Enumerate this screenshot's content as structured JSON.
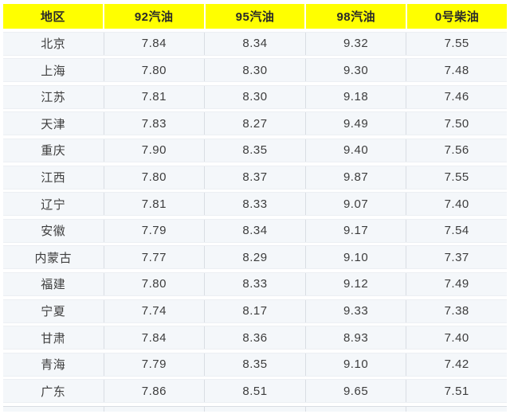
{
  "table": {
    "title": "regional-fuel-prices",
    "columns": [
      {
        "label": "地区"
      },
      {
        "label": "92汽油"
      },
      {
        "label": "95汽油"
      },
      {
        "label": "98汽油"
      },
      {
        "label": "0号柴油"
      }
    ],
    "rows": [
      {
        "values": [
          "北京",
          "7.84",
          "8.34",
          "9.32",
          "7.55"
        ]
      },
      {
        "values": [
          "上海",
          "7.80",
          "8.30",
          "9.30",
          "7.48"
        ]
      },
      {
        "values": [
          "江苏",
          "7.81",
          "8.30",
          "9.18",
          "7.46"
        ]
      },
      {
        "values": [
          "天津",
          "7.83",
          "8.27",
          "9.49",
          "7.50"
        ]
      },
      {
        "values": [
          "重庆",
          "7.90",
          "8.35",
          "9.40",
          "7.56"
        ]
      },
      {
        "values": [
          "江西",
          "7.80",
          "8.37",
          "9.87",
          "7.55"
        ]
      },
      {
        "values": [
          "辽宁",
          "7.81",
          "8.33",
          "9.07",
          "7.40"
        ]
      },
      {
        "values": [
          "安徽",
          "7.79",
          "8.34",
          "9.17",
          "7.54"
        ]
      },
      {
        "values": [
          "内蒙古",
          "7.77",
          "8.29",
          "9.10",
          "7.37"
        ]
      },
      {
        "values": [
          "福建",
          "7.80",
          "8.33",
          "9.12",
          "7.49"
        ]
      },
      {
        "values": [
          "宁夏",
          "7.74",
          "8.17",
          "9.33",
          "7.38"
        ]
      },
      {
        "values": [
          "甘肃",
          "7.84",
          "8.36",
          "8.93",
          "7.40"
        ]
      },
      {
        "values": [
          "青海",
          "7.79",
          "8.35",
          "9.10",
          "7.42"
        ]
      },
      {
        "values": [
          "广东",
          "7.86",
          "8.51",
          "9.65",
          "7.51"
        ]
      }
    ]
  },
  "colors": {
    "header_bg": "#ffff00",
    "header_text": "#2a2a2a",
    "row_bg": "#f4f7fa",
    "row_edge": "#eceff3",
    "divider": "#d9dde3",
    "cell_text": "#3d3d3d"
  }
}
